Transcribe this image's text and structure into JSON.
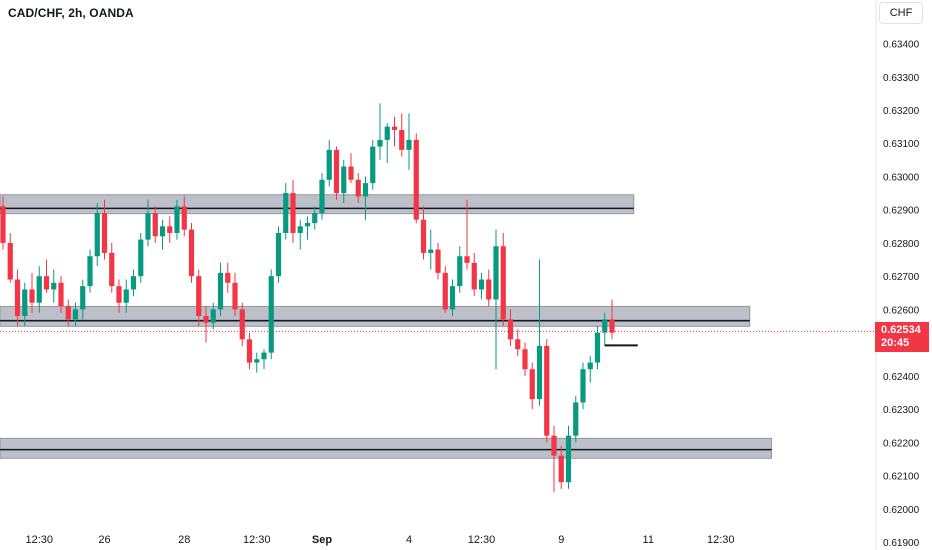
{
  "header": {
    "title": "CAD/CHF, 2h, OANDA",
    "currency_button": "CHF"
  },
  "price_tag": {
    "price": "0.62534",
    "countdown": "20:45",
    "color": "#f23645"
  },
  "colors": {
    "up": "#089981",
    "down": "#f23645",
    "zone_fill": "#b2b5be",
    "zone_line": "#131722",
    "current_price_line": "#f23645"
  },
  "chart_data": {
    "type": "candlestick",
    "title": "CAD/CHF, 2h, OANDA",
    "ylim": [
      0.61876,
      0.63531
    ],
    "y_ticks": [
      "0.63400",
      "0.63300",
      "0.63200",
      "0.63100",
      "0.63000",
      "0.62900",
      "0.62800",
      "0.62700",
      "0.62600",
      "0.62500",
      "0.62400",
      "0.62300",
      "0.62200",
      "0.62100",
      "0.62000",
      "0.61900"
    ],
    "x_ticks": [
      {
        "label": "12:30",
        "bold": false,
        "index": 5
      },
      {
        "label": "26",
        "bold": false,
        "index": 14
      },
      {
        "label": "28",
        "bold": false,
        "index": 25
      },
      {
        "label": "12:30",
        "bold": false,
        "index": 35
      },
      {
        "label": "Sep",
        "bold": true,
        "index": 44
      },
      {
        "label": "4",
        "bold": false,
        "index": 56
      },
      {
        "label": "12:30",
        "bold": false,
        "index": 66
      },
      {
        "label": "9",
        "bold": false,
        "index": 77
      },
      {
        "label": "11",
        "bold": false,
        "index": 89
      },
      {
        "label": "12:30",
        "bold": false,
        "index": 99
      }
    ],
    "zones": [
      {
        "low": 0.62152,
        "high": 0.62212,
        "line": 0.62178,
        "x_end_index": 106
      },
      {
        "low": 0.62888,
        "high": 0.62945,
        "line": 0.62904,
        "x_end_index": 87
      },
      {
        "low": 0.62549,
        "high": 0.62609,
        "line": 0.62566,
        "x_end_index": 103
      }
    ],
    "last_price": 0.62534,
    "candles": [
      [
        0.6291,
        0.6294,
        0.6278,
        0.628
      ],
      [
        0.628,
        0.6283,
        0.6268,
        0.6269
      ],
      [
        0.6269,
        0.6272,
        0.6255,
        0.6258
      ],
      [
        0.6258,
        0.6268,
        0.6255,
        0.6266
      ],
      [
        0.6266,
        0.6271,
        0.6259,
        0.6262
      ],
      [
        0.6262,
        0.6273,
        0.6259,
        0.627
      ],
      [
        0.627,
        0.6275,
        0.6265,
        0.6266
      ],
      [
        0.6266,
        0.6272,
        0.6262,
        0.6268
      ],
      [
        0.6268,
        0.627,
        0.6259,
        0.6261
      ],
      [
        0.6261,
        0.6263,
        0.6255,
        0.6257
      ],
      [
        0.6257,
        0.6262,
        0.6255,
        0.626
      ],
      [
        0.626,
        0.6269,
        0.6257,
        0.6267
      ],
      [
        0.6267,
        0.6278,
        0.6265,
        0.6276
      ],
      [
        0.6276,
        0.6292,
        0.6273,
        0.6289
      ],
      [
        0.6289,
        0.6293,
        0.6275,
        0.6277
      ],
      [
        0.6277,
        0.628,
        0.6265,
        0.6267
      ],
      [
        0.6267,
        0.6269,
        0.6259,
        0.6262
      ],
      [
        0.6262,
        0.6269,
        0.6259,
        0.6266
      ],
      [
        0.6266,
        0.6272,
        0.6264,
        0.627
      ],
      [
        0.627,
        0.6283,
        0.6268,
        0.6281
      ],
      [
        0.6281,
        0.6293,
        0.6279,
        0.6289
      ],
      [
        0.6289,
        0.6291,
        0.628,
        0.6282
      ],
      [
        0.6282,
        0.6287,
        0.6278,
        0.6285
      ],
      [
        0.6285,
        0.6288,
        0.628,
        0.6283
      ],
      [
        0.6283,
        0.6293,
        0.6281,
        0.6291
      ],
      [
        0.6291,
        0.6294,
        0.6282,
        0.6284
      ],
      [
        0.6284,
        0.6286,
        0.6268,
        0.627
      ],
      [
        0.627,
        0.6272,
        0.6255,
        0.6258
      ],
      [
        0.6258,
        0.6261,
        0.625,
        0.6256
      ],
      [
        0.6256,
        0.6262,
        0.6254,
        0.626
      ],
      [
        0.626,
        0.6274,
        0.6258,
        0.6271
      ],
      [
        0.6271,
        0.6274,
        0.6265,
        0.6268
      ],
      [
        0.6268,
        0.6271,
        0.6258,
        0.626
      ],
      [
        0.626,
        0.6262,
        0.6249,
        0.6251
      ],
      [
        0.6251,
        0.6253,
        0.6242,
        0.6244
      ],
      [
        0.6244,
        0.6247,
        0.6241,
        0.6245
      ],
      [
        0.6245,
        0.6248,
        0.6242,
        0.6247
      ],
      [
        0.6247,
        0.6272,
        0.6245,
        0.627
      ],
      [
        0.627,
        0.6285,
        0.6268,
        0.6283
      ],
      [
        0.6283,
        0.6298,
        0.6281,
        0.6295
      ],
      [
        0.6295,
        0.6299,
        0.628,
        0.6283
      ],
      [
        0.6283,
        0.6287,
        0.6278,
        0.6285
      ],
      [
        0.6285,
        0.6288,
        0.6281,
        0.6286
      ],
      [
        0.6286,
        0.6291,
        0.6284,
        0.6289
      ],
      [
        0.6289,
        0.6301,
        0.6287,
        0.6299
      ],
      [
        0.6299,
        0.6311,
        0.6297,
        0.6308
      ],
      [
        0.6308,
        0.6309,
        0.6293,
        0.6295
      ],
      [
        0.6295,
        0.6305,
        0.6292,
        0.6303
      ],
      [
        0.6303,
        0.6307,
        0.6298,
        0.6299
      ],
      [
        0.6299,
        0.6301,
        0.6292,
        0.6294
      ],
      [
        0.6294,
        0.63,
        0.6287,
        0.6298
      ],
      [
        0.6298,
        0.6311,
        0.6296,
        0.6309
      ],
      [
        0.6309,
        0.6322,
        0.6305,
        0.6311
      ],
      [
        0.6311,
        0.6316,
        0.6304,
        0.6315
      ],
      [
        0.6315,
        0.6318,
        0.6309,
        0.6314
      ],
      [
        0.6314,
        0.6319,
        0.6306,
        0.6308
      ],
      [
        0.6308,
        0.6319,
        0.6302,
        0.6311
      ],
      [
        0.6311,
        0.6313,
        0.6286,
        0.6287
      ],
      [
        0.6287,
        0.6291,
        0.6275,
        0.6277
      ],
      [
        0.6277,
        0.6284,
        0.6272,
        0.6278
      ],
      [
        0.6278,
        0.628,
        0.6269,
        0.6271
      ],
      [
        0.6271,
        0.6273,
        0.6259,
        0.626
      ],
      [
        0.626,
        0.6269,
        0.6258,
        0.6267
      ],
      [
        0.6267,
        0.6279,
        0.6265,
        0.6276
      ],
      [
        0.6276,
        0.6293,
        0.6272,
        0.6274
      ],
      [
        0.6274,
        0.6277,
        0.6264,
        0.6266
      ],
      [
        0.6266,
        0.6271,
        0.6263,
        0.6269
      ],
      [
        0.6269,
        0.6272,
        0.6261,
        0.6263
      ],
      [
        0.6263,
        0.6284,
        0.6242,
        0.6279
      ],
      [
        0.6279,
        0.6283,
        0.6255,
        0.6257
      ],
      [
        0.6257,
        0.626,
        0.6249,
        0.6251
      ],
      [
        0.6251,
        0.6254,
        0.6246,
        0.6248
      ],
      [
        0.6248,
        0.625,
        0.624,
        0.6242
      ],
      [
        0.6242,
        0.6244,
        0.623,
        0.6233
      ],
      [
        0.6233,
        0.6275,
        0.6231,
        0.6249
      ],
      [
        0.6249,
        0.6251,
        0.622,
        0.6222
      ],
      [
        0.6222,
        0.6225,
        0.6205,
        0.6216
      ],
      [
        0.6216,
        0.6219,
        0.6206,
        0.6208
      ],
      [
        0.6208,
        0.6225,
        0.6206,
        0.6222
      ],
      [
        0.6222,
        0.6234,
        0.622,
        0.6232
      ],
      [
        0.6232,
        0.6244,
        0.623,
        0.6242
      ],
      [
        0.6242,
        0.6246,
        0.6238,
        0.6244
      ],
      [
        0.6244,
        0.6255,
        0.6242,
        0.6253
      ],
      [
        0.6253,
        0.6259,
        0.6249,
        0.6257
      ],
      [
        0.6257,
        0.6263,
        0.6251,
        0.6253
      ]
    ]
  }
}
